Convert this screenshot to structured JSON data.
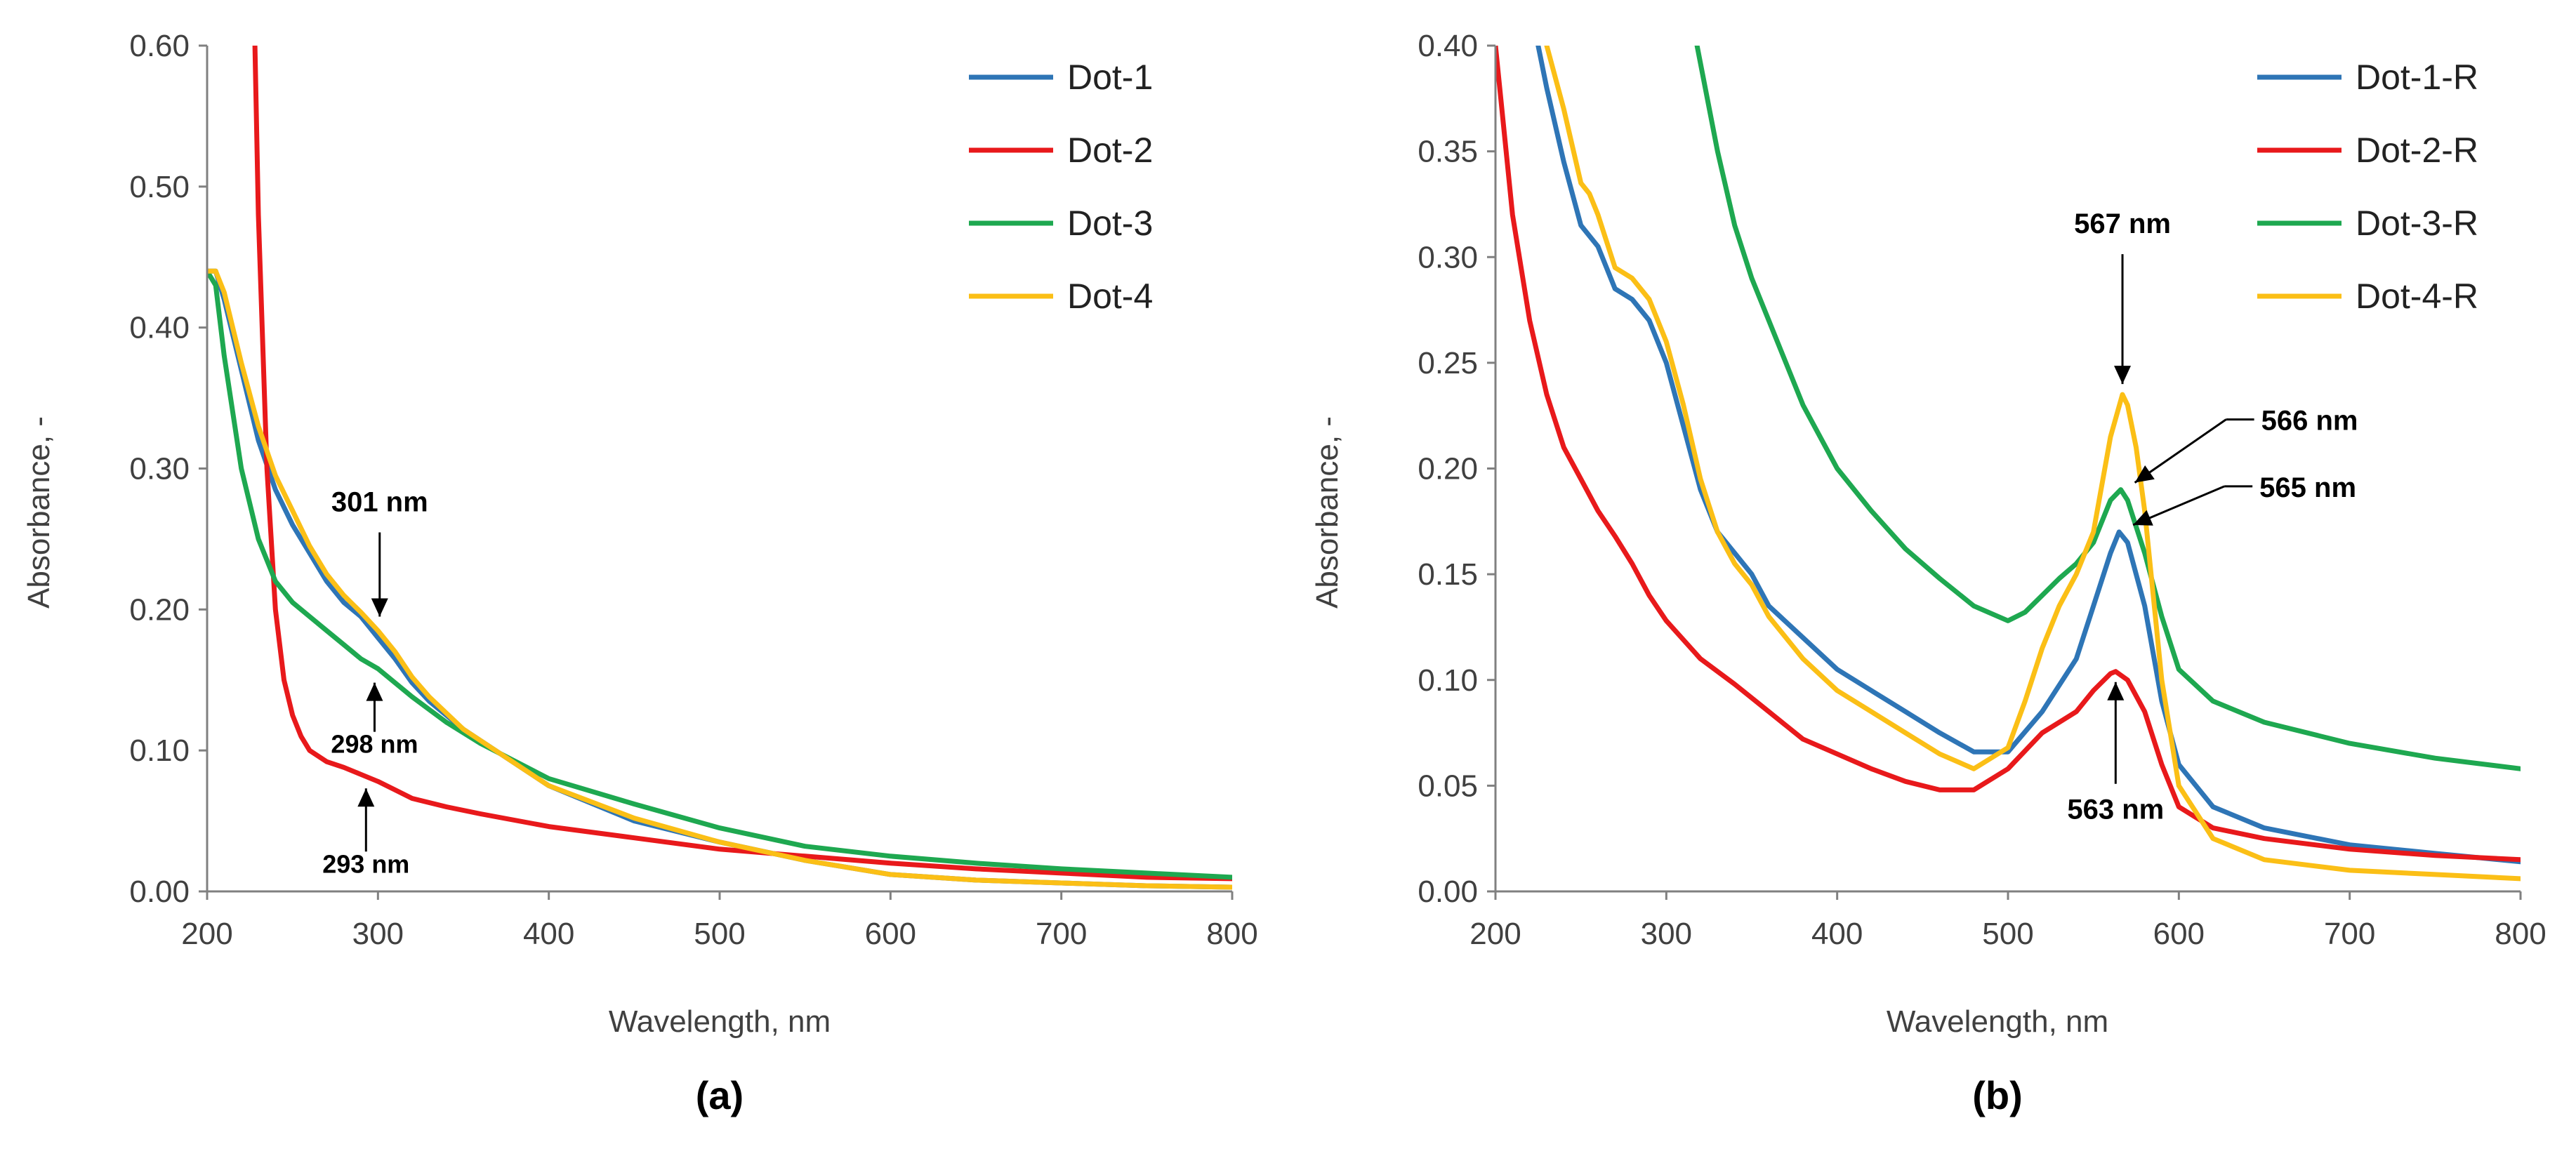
{
  "colors": {
    "blue": "#2E75B6",
    "red": "#E8191B",
    "green": "#1EA850",
    "yellow": "#FBBF16",
    "axis": "#808080",
    "arrow": "#000000"
  },
  "chart_data": [
    {
      "type": "line",
      "panel_label": "(a)",
      "xlabel": "Wavelength, nm",
      "ylabel": "Absorbance, -",
      "xlim": [
        200,
        800
      ],
      "ylim": [
        0,
        0.6
      ],
      "xticks": [
        "200",
        "300",
        "400",
        "500",
        "600",
        "700",
        "800"
      ],
      "yticks": [
        "0.00",
        "0.10",
        "0.20",
        "0.30",
        "0.40",
        "0.50",
        "0.60"
      ],
      "grid": false,
      "legend_position": "top-right",
      "series": [
        {
          "name": "Dot-1",
          "color": "#2E75B6",
          "x": [
            200,
            205,
            210,
            220,
            230,
            240,
            250,
            260,
            270,
            280,
            290,
            300,
            310,
            320,
            330,
            350,
            375,
            400,
            450,
            500,
            550,
            600,
            650,
            700,
            750,
            800
          ],
          "y": [
            0.44,
            0.44,
            0.42,
            0.37,
            0.32,
            0.285,
            0.26,
            0.24,
            0.22,
            0.205,
            0.195,
            0.18,
            0.165,
            0.148,
            0.135,
            0.115,
            0.095,
            0.075,
            0.05,
            0.035,
            0.022,
            0.012,
            0.008,
            0.006,
            0.004,
            0.003
          ]
        },
        {
          "name": "Dot-2",
          "color": "#E8191B",
          "x": [
            228,
            230,
            235,
            240,
            245,
            250,
            255,
            260,
            270,
            280,
            290,
            300,
            310,
            320,
            340,
            360,
            400,
            450,
            500,
            550,
            600,
            650,
            700,
            750,
            800
          ],
          "y": [
            0.6,
            0.48,
            0.3,
            0.2,
            0.15,
            0.125,
            0.11,
            0.1,
            0.092,
            0.088,
            0.083,
            0.078,
            0.072,
            0.066,
            0.06,
            0.055,
            0.046,
            0.038,
            0.03,
            0.025,
            0.02,
            0.016,
            0.013,
            0.01,
            0.009
          ]
        },
        {
          "name": "Dot-3",
          "color": "#1EA850",
          "x": [
            200,
            205,
            210,
            220,
            230,
            240,
            250,
            260,
            270,
            280,
            290,
            300,
            310,
            320,
            340,
            360,
            400,
            450,
            500,
            550,
            600,
            650,
            700,
            750,
            800
          ],
          "y": [
            0.44,
            0.43,
            0.38,
            0.3,
            0.25,
            0.22,
            0.205,
            0.195,
            0.185,
            0.175,
            0.165,
            0.158,
            0.148,
            0.138,
            0.12,
            0.105,
            0.08,
            0.062,
            0.045,
            0.032,
            0.025,
            0.02,
            0.016,
            0.013,
            0.01
          ]
        },
        {
          "name": "Dot-4",
          "color": "#FBBF16",
          "x": [
            200,
            205,
            210,
            220,
            230,
            240,
            250,
            260,
            270,
            280,
            290,
            300,
            310,
            320,
            330,
            350,
            375,
            400,
            450,
            500,
            550,
            600,
            650,
            700,
            750,
            800
          ],
          "y": [
            0.44,
            0.44,
            0.425,
            0.375,
            0.33,
            0.295,
            0.27,
            0.245,
            0.225,
            0.21,
            0.198,
            0.185,
            0.17,
            0.152,
            0.138,
            0.115,
            0.095,
            0.075,
            0.052,
            0.035,
            0.022,
            0.012,
            0.008,
            0.006,
            0.004,
            0.003
          ]
        }
      ],
      "annotations": [
        {
          "text": "301 nm",
          "x": 301,
          "y": 0.185,
          "dir": "down"
        },
        {
          "text": "298 nm",
          "x": 298,
          "y": 0.158,
          "dir": "up"
        },
        {
          "text": "293 nm",
          "x": 293,
          "y": 0.083,
          "dir": "up"
        }
      ]
    },
    {
      "type": "line",
      "panel_label": "(b)",
      "xlabel": "Wavelength, nm",
      "ylabel": "Absorbance, -",
      "xlim": [
        200,
        800
      ],
      "ylim": [
        0,
        0.4
      ],
      "xticks": [
        "200",
        "300",
        "400",
        "500",
        "600",
        "700",
        "800"
      ],
      "yticks": [
        "0.00",
        "0.05",
        "0.10",
        "0.15",
        "0.20",
        "0.25",
        "0.30",
        "0.35",
        "0.40"
      ],
      "grid": false,
      "legend_position": "top-right",
      "series": [
        {
          "name": "Dot-1-R",
          "color": "#2E75B6",
          "x": [
            225,
            230,
            240,
            250,
            260,
            270,
            280,
            290,
            300,
            310,
            320,
            330,
            340,
            350,
            360,
            380,
            400,
            420,
            440,
            460,
            480,
            500,
            520,
            540,
            550,
            560,
            565,
            570,
            580,
            590,
            600,
            620,
            650,
            700,
            750,
            800
          ],
          "y": [
            0.4,
            0.38,
            0.345,
            0.315,
            0.305,
            0.285,
            0.28,
            0.27,
            0.25,
            0.22,
            0.19,
            0.17,
            0.16,
            0.15,
            0.135,
            0.12,
            0.105,
            0.095,
            0.085,
            0.075,
            0.066,
            0.066,
            0.085,
            0.11,
            0.135,
            0.16,
            0.17,
            0.165,
            0.135,
            0.09,
            0.06,
            0.04,
            0.03,
            0.022,
            0.018,
            0.014
          ]
        },
        {
          "name": "Dot-2-R",
          "color": "#E8191B",
          "x": [
            200,
            210,
            220,
            230,
            240,
            250,
            260,
            270,
            280,
            290,
            300,
            320,
            340,
            360,
            380,
            400,
            420,
            440,
            460,
            480,
            500,
            520,
            540,
            550,
            560,
            563,
            570,
            580,
            590,
            600,
            620,
            650,
            700,
            750,
            800
          ],
          "y": [
            0.4,
            0.32,
            0.27,
            0.235,
            0.21,
            0.195,
            0.18,
            0.168,
            0.155,
            0.14,
            0.128,
            0.11,
            0.098,
            0.085,
            0.072,
            0.065,
            0.058,
            0.052,
            0.048,
            0.048,
            0.058,
            0.075,
            0.085,
            0.095,
            0.103,
            0.104,
            0.1,
            0.085,
            0.06,
            0.04,
            0.03,
            0.025,
            0.02,
            0.017,
            0.015
          ]
        },
        {
          "name": "Dot-3-R",
          "color": "#1EA850",
          "x": [
            318,
            330,
            340,
            350,
            360,
            380,
            400,
            420,
            440,
            460,
            480,
            500,
            510,
            520,
            530,
            540,
            550,
            560,
            566,
            570,
            580,
            590,
            600,
            620,
            650,
            700,
            750,
            800
          ],
          "y": [
            0.4,
            0.35,
            0.315,
            0.29,
            0.27,
            0.23,
            0.2,
            0.18,
            0.162,
            0.148,
            0.135,
            0.128,
            0.132,
            0.14,
            0.148,
            0.155,
            0.165,
            0.185,
            0.19,
            0.185,
            0.16,
            0.13,
            0.105,
            0.09,
            0.08,
            0.07,
            0.063,
            0.058
          ]
        },
        {
          "name": "Dot-4-R",
          "color": "#FBBF16",
          "x": [
            230,
            240,
            250,
            255,
            260,
            270,
            280,
            290,
            300,
            310,
            320,
            330,
            340,
            350,
            360,
            380,
            400,
            420,
            440,
            460,
            480,
            500,
            510,
            520,
            530,
            540,
            550,
            560,
            567,
            570,
            575,
            580,
            590,
            600,
            620,
            650,
            700,
            750,
            800
          ],
          "y": [
            0.4,
            0.37,
            0.335,
            0.33,
            0.32,
            0.295,
            0.29,
            0.28,
            0.26,
            0.23,
            0.195,
            0.17,
            0.155,
            0.145,
            0.13,
            0.11,
            0.095,
            0.085,
            0.075,
            0.065,
            0.058,
            0.068,
            0.09,
            0.115,
            0.135,
            0.15,
            0.17,
            0.215,
            0.235,
            0.23,
            0.21,
            0.18,
            0.1,
            0.05,
            0.025,
            0.015,
            0.01,
            0.008,
            0.006
          ]
        }
      ],
      "annotations": [
        {
          "text": "567 nm",
          "x": 567,
          "y": 0.235,
          "dir": "down"
        },
        {
          "text": "566 nm",
          "x": 566,
          "y": 0.19,
          "dir": "diag"
        },
        {
          "text": "565 nm",
          "x": 565,
          "y": 0.17,
          "dir": "diag"
        },
        {
          "text": "563 nm",
          "x": 563,
          "y": 0.104,
          "dir": "up"
        }
      ]
    }
  ]
}
